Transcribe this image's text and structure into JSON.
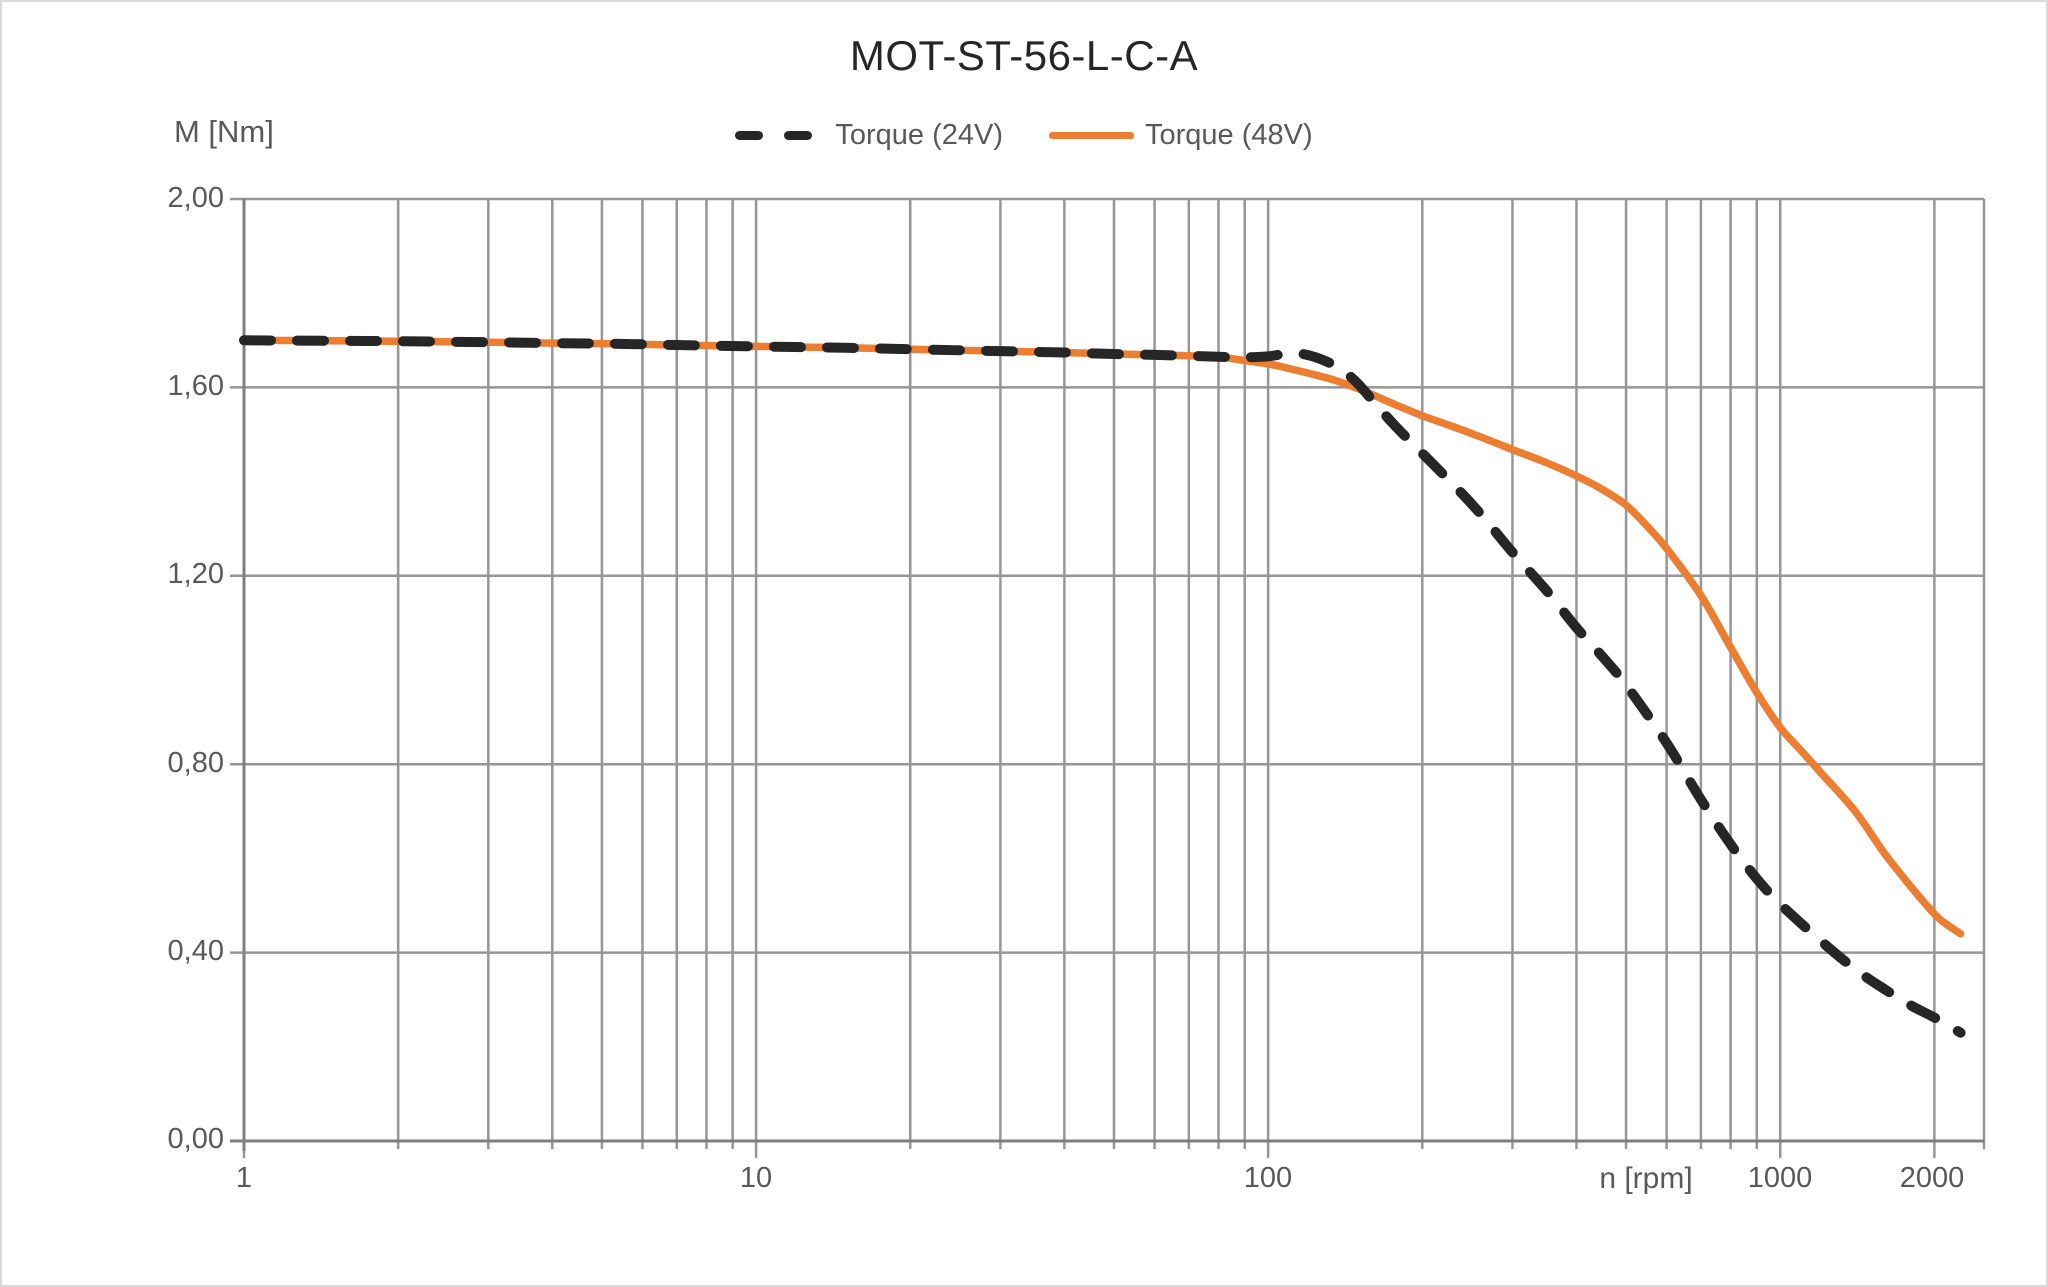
{
  "title": "MOT-ST-56-L-C-A",
  "legend": {
    "items": [
      {
        "label": "Torque (24V)",
        "color": "#262626",
        "style": "dashed"
      },
      {
        "label": "Torque (48V)",
        "color": "#ED7D31",
        "style": "solid"
      }
    ]
  },
  "axes": {
    "y": {
      "title": "M [Nm]",
      "ticks": [
        "2,00",
        "1,60",
        "1,20",
        "0,80",
        "0,40",
        "0,00"
      ],
      "tick_values": [
        2.0,
        1.6,
        1.2,
        0.8,
        0.4,
        0.0
      ]
    },
    "x": {
      "title": "n [rpm]",
      "ticks": [
        "1",
        "10",
        "100",
        "1000",
        "2000"
      ],
      "tick_values": [
        1,
        10,
        100,
        1000,
        2000
      ]
    }
  },
  "colors": {
    "series_24v": "#262626",
    "series_48v": "#ED7D31",
    "gridline": "#969696",
    "axis": "#7f7f7f",
    "label_text": "#595959",
    "title_text": "#262626",
    "background": "#ffffff"
  },
  "chart_data": {
    "type": "line",
    "title": "MOT-ST-56-L-C-A",
    "xlabel": "n [rpm]",
    "ylabel": "M [Nm]",
    "x_scale": "log",
    "xlim": [
      1,
      2500
    ],
    "ylim": [
      0,
      2
    ],
    "grid": true,
    "legend_position": "top-center",
    "y_gridlines": [
      0.0,
      0.4,
      0.8,
      1.2,
      1.6,
      2.0
    ],
    "x_gridlines": [
      1,
      2,
      3,
      4,
      5,
      6,
      7,
      8,
      9,
      10,
      20,
      30,
      40,
      50,
      60,
      70,
      80,
      90,
      100,
      200,
      300,
      400,
      500,
      600,
      700,
      800,
      900,
      1000,
      2000,
      2500
    ],
    "series": [
      {
        "name": "Torque (48V)",
        "color": "#ED7D31",
        "dash": false,
        "points": [
          [
            1,
            1.7
          ],
          [
            1.5,
            1.699
          ],
          [
            2,
            1.698
          ],
          [
            3,
            1.696
          ],
          [
            4,
            1.694
          ],
          [
            5,
            1.693
          ],
          [
            7,
            1.69
          ],
          [
            10,
            1.687
          ],
          [
            15,
            1.684
          ],
          [
            20,
            1.681
          ],
          [
            30,
            1.677
          ],
          [
            40,
            1.674
          ],
          [
            50,
            1.671
          ],
          [
            60,
            1.669
          ],
          [
            70,
            1.667
          ],
          [
            80,
            1.665
          ],
          [
            90,
            1.657
          ],
          [
            100,
            1.65
          ],
          [
            110,
            1.64
          ],
          [
            120,
            1.63
          ],
          [
            135,
            1.615
          ],
          [
            150,
            1.597
          ],
          [
            165,
            1.578
          ],
          [
            180,
            1.56
          ],
          [
            200,
            1.54
          ],
          [
            250,
            1.502
          ],
          [
            300,
            1.468
          ],
          [
            350,
            1.44
          ],
          [
            400,
            1.412
          ],
          [
            450,
            1.383
          ],
          [
            500,
            1.35
          ],
          [
            550,
            1.305
          ],
          [
            600,
            1.258
          ],
          [
            700,
            1.158
          ],
          [
            800,
            1.048
          ],
          [
            900,
            0.952
          ],
          [
            1000,
            0.878
          ],
          [
            1100,
            0.828
          ],
          [
            1200,
            0.782
          ],
          [
            1400,
            0.7
          ],
          [
            1600,
            0.61
          ],
          [
            1800,
            0.54
          ],
          [
            2000,
            0.482
          ],
          [
            2100,
            0.462
          ],
          [
            2250,
            0.44
          ]
        ]
      },
      {
        "name": "Torque (24V)",
        "color": "#262626",
        "dash": true,
        "points": [
          [
            1,
            1.7
          ],
          [
            1.5,
            1.699
          ],
          [
            2,
            1.698
          ],
          [
            3,
            1.696
          ],
          [
            4,
            1.694
          ],
          [
            5,
            1.693
          ],
          [
            7,
            1.69
          ],
          [
            10,
            1.687
          ],
          [
            15,
            1.684
          ],
          [
            20,
            1.681
          ],
          [
            30,
            1.677
          ],
          [
            40,
            1.674
          ],
          [
            50,
            1.671
          ],
          [
            60,
            1.669
          ],
          [
            70,
            1.667
          ],
          [
            80,
            1.665
          ],
          [
            90,
            1.664
          ],
          [
            100,
            1.666
          ],
          [
            108,
            1.671
          ],
          [
            118,
            1.67
          ],
          [
            130,
            1.655
          ],
          [
            140,
            1.635
          ],
          [
            150,
            1.607
          ],
          [
            165,
            1.555
          ],
          [
            180,
            1.51
          ],
          [
            200,
            1.46
          ],
          [
            250,
            1.352
          ],
          [
            300,
            1.25
          ],
          [
            350,
            1.168
          ],
          [
            400,
            1.09
          ],
          [
            450,
            1.028
          ],
          [
            500,
            0.968
          ],
          [
            600,
            0.845
          ],
          [
            700,
            0.725
          ],
          [
            800,
            0.63
          ],
          [
            900,
            0.557
          ],
          [
            1000,
            0.503
          ],
          [
            1200,
            0.425
          ],
          [
            1400,
            0.365
          ],
          [
            1600,
            0.322
          ],
          [
            1800,
            0.288
          ],
          [
            2000,
            0.262
          ],
          [
            2250,
            0.23
          ]
        ]
      }
    ]
  }
}
